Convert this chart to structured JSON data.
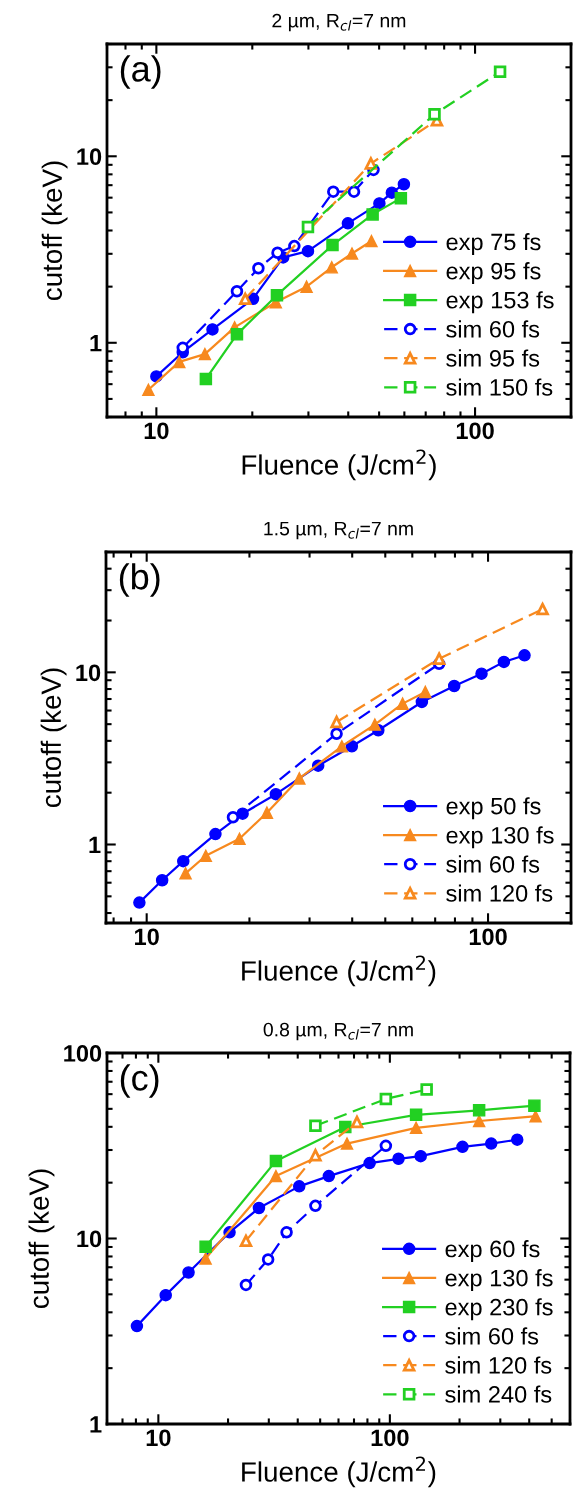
{
  "chart_data": [
    {
      "type": "line",
      "title": "2 µm, R$_{cl}$=7 nm",
      "xlabel": "Fluence (J/cm$^{2}$)",
      "ylabel": "cutoff (keV)",
      "annotations": [
        "(a)"
      ],
      "log": "xy",
      "xlim": [
        7,
        200
      ],
      "ylim": [
        0.4,
        40
      ],
      "xticks": [
        10,
        100
      ],
      "yticks": [
        1,
        10
      ],
      "legend": "bottom right",
      "grid": false,
      "series": [
        {
          "name": "exp 75 fs",
          "color": "#0000ff",
          "marker": "circle",
          "line_style": "solid",
          "x": [
            10,
            12.1,
            15.0,
            20.1,
            25.0,
            29.9,
            39.9,
            50.1,
            54.8,
            59.8
          ],
          "values": [
            0.66,
            0.89,
            1.18,
            1.72,
            2.87,
            3.1,
            4.37,
            5.59,
            6.38,
            7.08
          ]
        },
        {
          "name": "exp 95 fs",
          "color": "#f7891e",
          "marker": "triangle",
          "line_style": "solid",
          "x": [
            9.44,
            11.8,
            14.2,
            17.6,
            23.7,
            29.6,
            35.5,
            41.1,
            47.3
          ],
          "values": [
            0.56,
            0.79,
            0.87,
            1.21,
            1.65,
            2.0,
            2.54,
            3.01,
            3.51
          ]
        },
        {
          "name": "exp 153 fs",
          "color": "#22d022",
          "marker": "square",
          "line_style": "solid",
          "x": [
            14.3,
            17.9,
            23.9,
            35.7,
            47.7,
            58.5
          ],
          "values": [
            0.64,
            1.11,
            1.8,
            3.34,
            4.88,
            5.96
          ]
        },
        {
          "name": "sim 60 fs",
          "color": "#0000ff",
          "marker": "circle",
          "line_style": "dashed",
          "x": [
            12.1,
            17.9,
            20.9,
            24.0,
            27.1,
            35.9,
            41.7,
            48.0
          ],
          "values": [
            0.94,
            1.89,
            2.51,
            3.04,
            3.3,
            6.46,
            6.46,
            8.45
          ]
        },
        {
          "name": "sim 95 fs",
          "color": "#f7891e",
          "marker": "triangle",
          "line_style": "dashed",
          "x": [
            19.0,
            47.1,
            75.9
          ],
          "values": [
            1.72,
            9.14,
            15.6
          ]
        },
        {
          "name": "sim 150 fs",
          "color": "#22d022",
          "marker": "square",
          "line_style": "dashed",
          "x": [
            29.9,
            74.6,
            119.8
          ],
          "values": [
            4.18,
            16.8,
            28.4
          ]
        }
      ]
    },
    {
      "type": "line",
      "title": "1.5 µm, R$_{cl}$=7 nm",
      "xlabel": "Fluence (J/cm$^{2}$)",
      "ylabel": "cutoff (keV)",
      "annotations": [
        "(b)"
      ],
      "log": "xy",
      "xlim": [
        7.6,
        175
      ],
      "ylim": [
        0.35,
        50
      ],
      "xticks": [
        10,
        100
      ],
      "yticks": [
        1,
        10
      ],
      "legend": "bottom right",
      "grid": false,
      "series": [
        {
          "name": "exp 50 fs",
          "color": "#0000ff",
          "marker": "circle",
          "line_style": "solid",
          "x": [
            9.52,
            11.1,
            12.8,
            15.9,
            19.1,
            23.9,
            31.8,
            39.9,
            47.7,
            64.0,
            79.6,
            95.7,
            111.3,
            127.9
          ],
          "values": [
            0.46,
            0.62,
            0.8,
            1.15,
            1.51,
            1.96,
            2.87,
            3.72,
            4.61,
            6.73,
            8.33,
            9.82,
            11.5,
            12.55
          ]
        },
        {
          "name": "exp 130 fs",
          "color": "#f7891e",
          "marker": "triangle",
          "line_style": "solid",
          "x": [
            13.0,
            14.9,
            18.7,
            22.5,
            28.0,
            37.3,
            46.6,
            56.2,
            65.5
          ],
          "values": [
            0.68,
            0.86,
            1.08,
            1.53,
            2.42,
            3.72,
            4.97,
            6.58,
            7.69
          ]
        },
        {
          "name": "sim 60 fs",
          "color": "#0000ff",
          "marker": "circle",
          "line_style": "dashed",
          "x": [
            17.9,
            36.0,
            71.9
          ],
          "values": [
            1.44,
            4.4,
            11.2
          ]
        },
        {
          "name": "sim 120 fs",
          "color": "#f7891e",
          "marker": "triangle",
          "line_style": "dashed",
          "x": [
            36.0,
            71.9,
            144.5
          ],
          "values": [
            5.15,
            12.0,
            23.3
          ]
        }
      ]
    },
    {
      "type": "line",
      "title": "0.8 µm, R$_{cl}$=7 nm",
      "xlabel": "Fluence (J/cm$^{2}$)",
      "ylabel": "cutoff (keV)",
      "annotations": [
        "(c)"
      ],
      "log": "xy",
      "xlim": [
        6,
        600
      ],
      "ylim": [
        1,
        100
      ],
      "xticks": [
        10,
        100
      ],
      "yticks": [
        1,
        10,
        100
      ],
      "legend": "bottom right",
      "grid": false,
      "series": [
        {
          "name": "exp 60 fs",
          "color": "#0000ff",
          "marker": "circle",
          "line_style": "solid",
          "x": [
            8.08,
            10.76,
            13.5,
            20.3,
            27.2,
            40.6,
            54.5,
            81.8,
            109,
            135.9,
            206,
            274,
            355
          ],
          "values": [
            3.37,
            4.95,
            6.56,
            10.8,
            14.6,
            19.1,
            21.7,
            25.5,
            26.9,
            27.8,
            31.2,
            32.5,
            34.1
          ]
        },
        {
          "name": "exp 130 fs",
          "color": "#f7891e",
          "marker": "triangle",
          "line_style": "solid",
          "x": [
            16.0,
            32.2,
            65.3,
            129.8,
            243,
            426
          ],
          "values": [
            7.8,
            21.7,
            32.5,
            39.5,
            43.0,
            45.6
          ]
        },
        {
          "name": "exp 230 fs",
          "color": "#22d022",
          "marker": "square",
          "line_style": "solid",
          "x": [
            16.0,
            32.2,
            64.2,
            129.8,
            243,
            421
          ],
          "values": [
            9.02,
            26.2,
            39.9,
            46.4,
            49.1,
            52.0
          ]
        },
        {
          "name": "sim 60 fs",
          "color": "#0000ff",
          "marker": "circle",
          "line_style": "dashed",
          "x": [
            23.9,
            29.8,
            35.8,
            47.7,
            96.1
          ],
          "values": [
            5.62,
            7.71,
            10.8,
            15.0,
            31.6
          ]
        },
        {
          "name": "sim 120 fs",
          "color": "#f7891e",
          "marker": "triangle",
          "line_style": "dashed",
          "x": [
            23.9,
            47.7,
            72.1
          ],
          "values": [
            9.71,
            28.1,
            42.5
          ]
        },
        {
          "name": "sim 240 fs",
          "color": "#22d022",
          "marker": "square",
          "line_style": "dashed",
          "x": [
            47.7,
            96.1,
            144.2
          ],
          "values": [
            40.5,
            56.5,
            63.5
          ]
        }
      ]
    }
  ]
}
